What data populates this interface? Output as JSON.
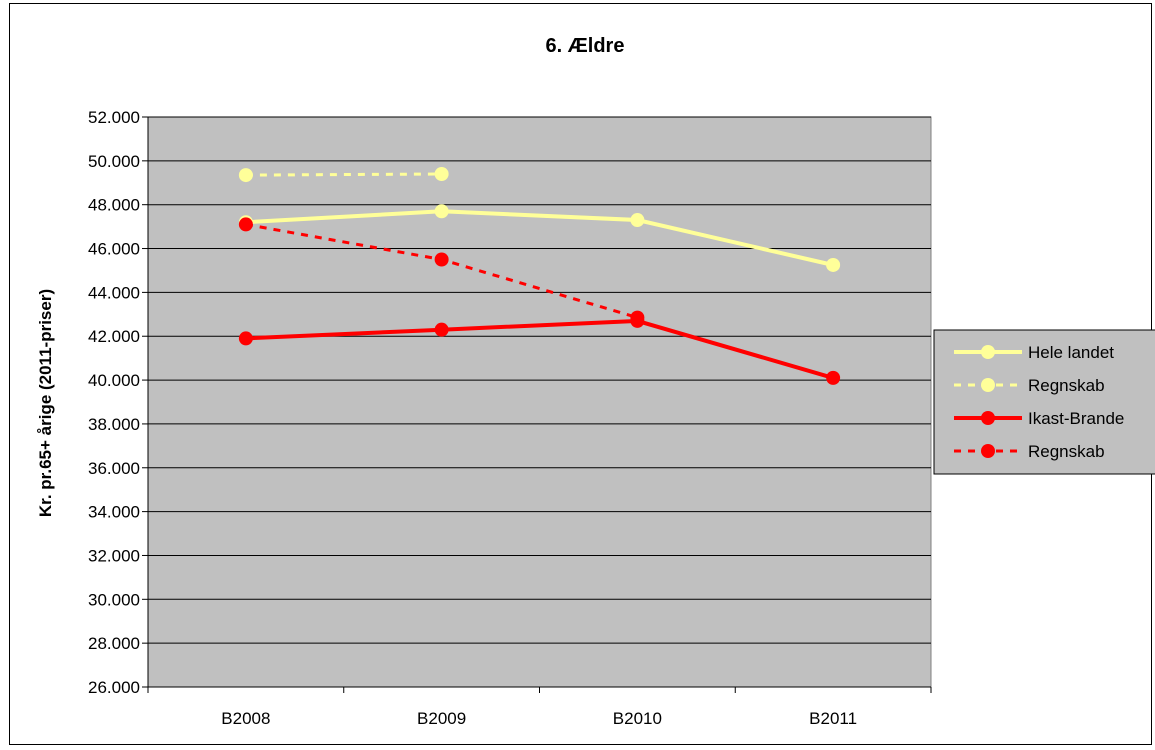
{
  "chart_data": {
    "type": "line",
    "title": "6. Ældre",
    "xlabel": "",
    "ylabel": "Kr. pr.65+ årige (2011-priser)",
    "categories": [
      "B2008",
      "B2009",
      "B2010",
      "B2011"
    ],
    "ylim": [
      26000,
      52000
    ],
    "ytick_step": 2000,
    "yticks": [
      "26.000",
      "28.000",
      "30.000",
      "32.000",
      "34.000",
      "36.000",
      "38.000",
      "40.000",
      "42.000",
      "44.000",
      "46.000",
      "48.000",
      "50.000",
      "52.000"
    ],
    "grid": true,
    "legend_position": "right",
    "series": [
      {
        "name": "Hele landet",
        "values": [
          47200,
          47700,
          47300,
          45250
        ],
        "color": "#ffff99",
        "dashed": false
      },
      {
        "name": "Regnskab",
        "values": [
          49350,
          49400,
          null,
          null
        ],
        "color": "#ffff99",
        "dashed": true
      },
      {
        "name": "Ikast-Brande",
        "values": [
          41900,
          42300,
          42700,
          40100
        ],
        "color": "#ff0000",
        "dashed": false
      },
      {
        "name": "Regnskab",
        "values": [
          47100,
          45500,
          42850,
          null
        ],
        "color": "#ff0000",
        "dashed": true
      }
    ]
  },
  "colors": {
    "plot_background": "#c0c0c0",
    "gridline": "#000000"
  }
}
